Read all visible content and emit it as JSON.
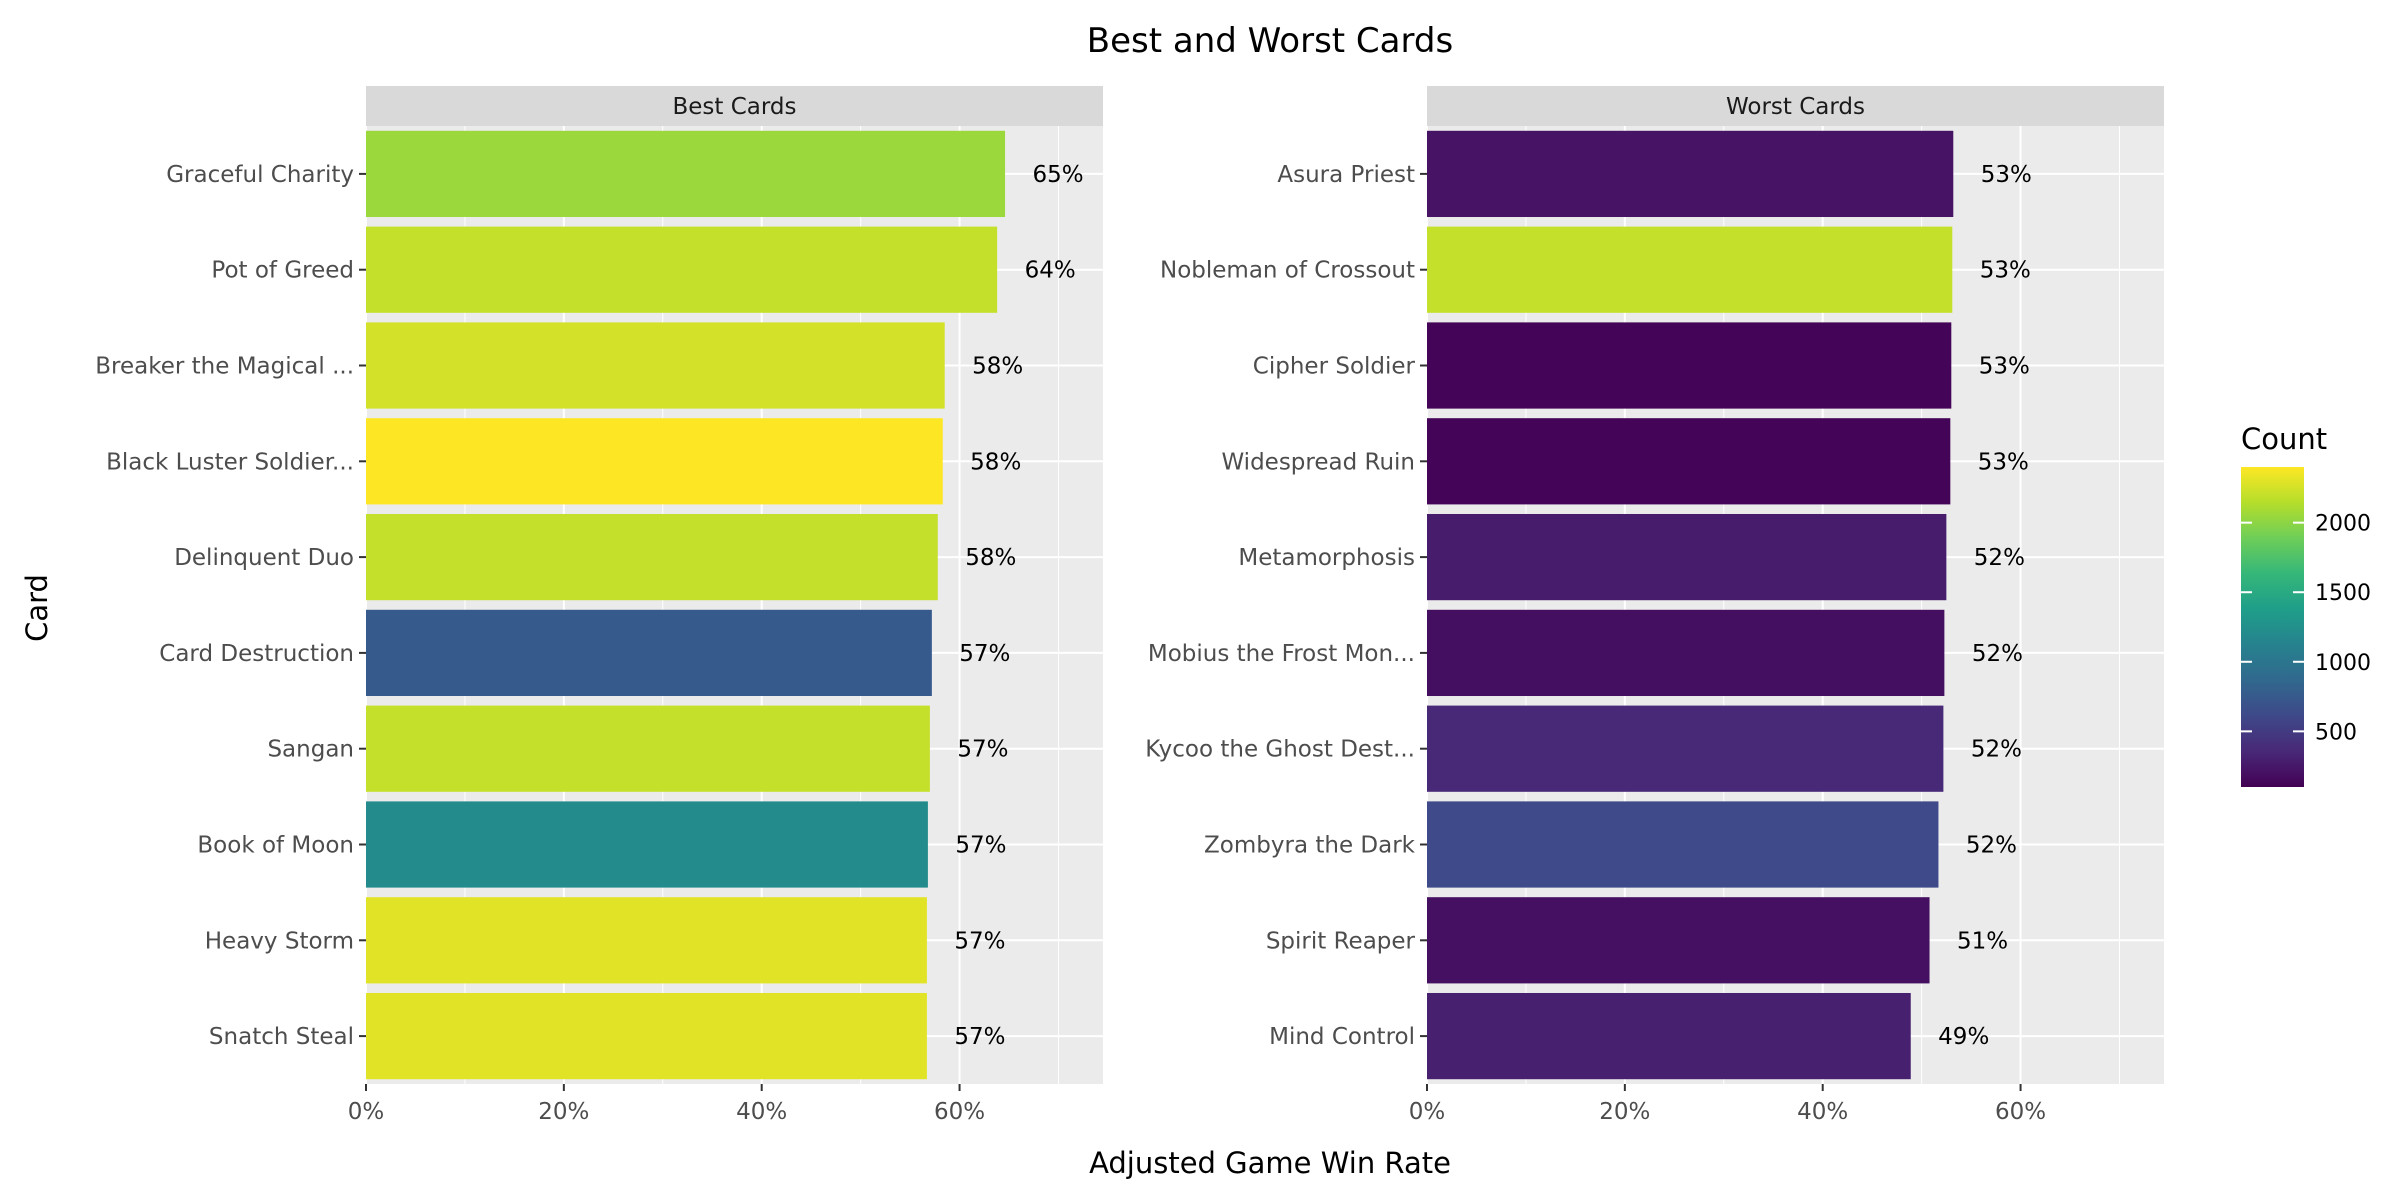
{
  "chart_data": {
    "type": "bar",
    "orientation": "horizontal",
    "title": "Best and Worst Cards",
    "xlabel": "Adjusted Game Win Rate",
    "ylabel": "Card",
    "xlim": [
      0,
      0.745
    ],
    "x_ticks": [
      {
        "value": 0,
        "label": "0%"
      },
      {
        "value": 0.2,
        "label": "20%"
      },
      {
        "value": 0.4,
        "label": "40%"
      },
      {
        "value": 0.6,
        "label": "60%"
      }
    ],
    "grid": true,
    "legend": {
      "title": "Count",
      "placement": "right",
      "min": 100,
      "max": 2400,
      "ticks": [
        {
          "value": 500,
          "label": "500"
        },
        {
          "value": 1000,
          "label": "1000"
        },
        {
          "value": 1500,
          "label": "1500"
        },
        {
          "value": 2000,
          "label": "2000"
        }
      ]
    },
    "facets": [
      {
        "name": "Best Cards",
        "categories": [
          "Graceful Charity",
          "Pot of Greed",
          "Breaker the Magical ...",
          "Black Luster Soldier...",
          "Delinquent Duo",
          "Card Destruction",
          "Sangan",
          "Book of Moon",
          "Heavy Storm",
          "Snatch Steal"
        ],
        "values": [
          0.646,
          0.638,
          0.585,
          0.583,
          0.578,
          0.572,
          0.57,
          0.568,
          0.567,
          0.567
        ],
        "labels": [
          "65%",
          "64%",
          "58%",
          "58%",
          "58%",
          "57%",
          "57%",
          "57%",
          "57%",
          "57%"
        ],
        "counts": [
          2050,
          2200,
          2250,
          2400,
          2200,
          750,
          2200,
          1200,
          2300,
          2300
        ]
      },
      {
        "name": "Worst Cards",
        "categories": [
          "Asura Priest",
          "Nobleman of Crossout",
          "Cipher Soldier",
          "Widespread Ruin",
          "Metamorphosis",
          "Mobius the Frost Mon...",
          "Kycoo the Ghost Dest...",
          "Zombyra the Dark",
          "Spirit Reaper",
          "Mind Control"
        ],
        "values": [
          0.532,
          0.531,
          0.53,
          0.529,
          0.525,
          0.523,
          0.522,
          0.517,
          0.508,
          0.489
        ],
        "labels": [
          "53%",
          "53%",
          "53%",
          "53%",
          "52%",
          "52%",
          "52%",
          "52%",
          "51%",
          "49%"
        ],
        "counts": [
          220,
          2200,
          120,
          120,
          280,
          190,
          360,
          620,
          200,
          300
        ]
      }
    ]
  },
  "colors": {
    "viridis_stops": [
      "#440154",
      "#482878",
      "#3e4989",
      "#31688e",
      "#26828e",
      "#1f9e89",
      "#35b779",
      "#6ece58",
      "#b5de2b",
      "#fde725"
    ]
  }
}
